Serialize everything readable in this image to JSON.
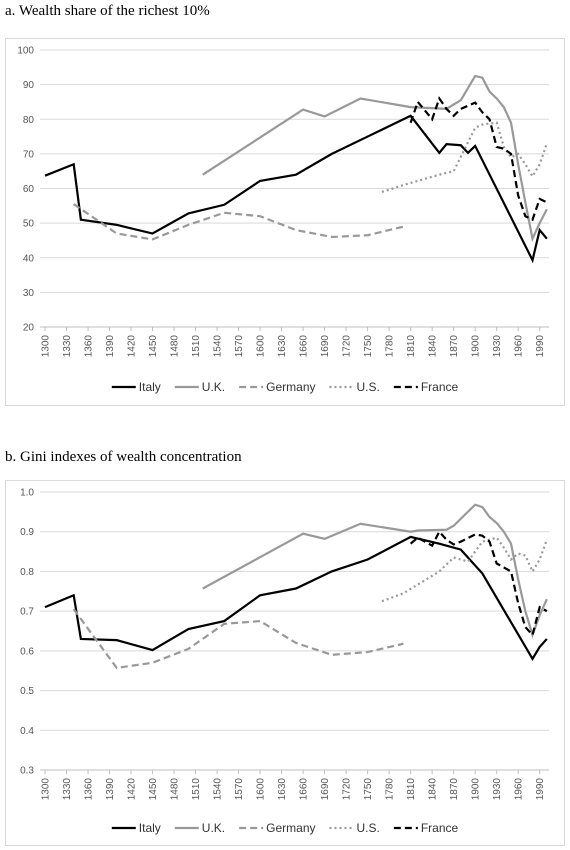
{
  "chart_data": [
    {
      "type": "line",
      "title": "a. Wealth share of the richest 10%",
      "legend": "bottom",
      "grid": true,
      "xlim": [
        1293,
        2003
      ],
      "xticks": [
        1300,
        1330,
        1360,
        1390,
        1420,
        1450,
        1480,
        1510,
        1540,
        1570,
        1600,
        1630,
        1660,
        1690,
        1720,
        1750,
        1780,
        1810,
        1840,
        1870,
        1900,
        1930,
        1960,
        1990
      ],
      "ylim": [
        20,
        100
      ],
      "yticks": [
        20,
        30,
        40,
        50,
        60,
        70,
        80,
        90,
        100
      ],
      "series": [
        {
          "name": "Italy",
          "color": "#000000",
          "dash": "solid",
          "x": [
            1300,
            1340,
            1350,
            1400,
            1450,
            1500,
            1550,
            1600,
            1650,
            1700,
            1750,
            1810,
            1850,
            1860,
            1880,
            1890,
            1900,
            1980,
            1990,
            2000
          ],
          "values": [
            63.7,
            67,
            51,
            49.5,
            47,
            52.8,
            55.3,
            62.2,
            64,
            70,
            75,
            81,
            70.3,
            72.8,
            72.5,
            70.3,
            72.3,
            39.3,
            48,
            45.5
          ]
        },
        {
          "name": "U.K.",
          "color": "#999999",
          "dash": "solid",
          "x": [
            1520,
            1660,
            1690,
            1740,
            1810,
            1860,
            1880,
            1900,
            1910,
            1920,
            1930,
            1940,
            1950,
            1960,
            1970,
            1980,
            1990,
            2000
          ],
          "values": [
            64,
            82.8,
            80.8,
            86,
            83.5,
            83,
            85.5,
            92.5,
            92,
            88,
            86,
            83.5,
            79,
            67,
            56,
            45.5,
            50,
            54
          ]
        },
        {
          "name": "Germany",
          "color": "#999999",
          "dash": "dashed",
          "x": [
            1340,
            1400,
            1450,
            1500,
            1550,
            1600,
            1650,
            1700,
            1750,
            1800
          ],
          "values": [
            55.5,
            47,
            45.3,
            49.5,
            53,
            52,
            48,
            46,
            46.5,
            49
          ]
        },
        {
          "name": "U.S.",
          "color": "#999999",
          "dash": "dotted",
          "x": [
            1770,
            1800,
            1850,
            1870,
            1900,
            1910,
            1930,
            1940,
            1950,
            1960,
            1970,
            1980,
            1990,
            2000
          ],
          "values": [
            59,
            61,
            64,
            65,
            77.5,
            78.5,
            79,
            72,
            69,
            70,
            67,
            63.5,
            67,
            73
          ]
        },
        {
          "name": "France",
          "color": "#000000",
          "dash": "dashed",
          "x": [
            1810,
            1820,
            1840,
            1850,
            1860,
            1870,
            1880,
            1900,
            1910,
            1920,
            1930,
            1940,
            1950,
            1960,
            1970,
            1980,
            1990,
            2000
          ],
          "values": [
            79,
            85,
            80,
            86,
            83,
            81,
            83,
            84.8,
            82,
            80,
            72,
            71.5,
            70,
            58,
            52,
            51,
            57,
            56
          ]
        }
      ]
    },
    {
      "type": "line",
      "title": "b. Gini indexes of wealth concentration",
      "legend": "bottom",
      "grid": true,
      "xlim": [
        1293,
        2003
      ],
      "xticks": [
        1300,
        1330,
        1360,
        1390,
        1420,
        1450,
        1480,
        1510,
        1540,
        1570,
        1600,
        1630,
        1660,
        1690,
        1720,
        1750,
        1780,
        1810,
        1840,
        1870,
        1900,
        1930,
        1960,
        1990
      ],
      "ylim": [
        0.3,
        1
      ],
      "yticks": [
        0.3,
        0.4,
        0.5,
        0.6,
        0.7,
        0.8,
        0.9,
        {
          "value": 1,
          "label": "1.0"
        }
      ],
      "series": [
        {
          "name": "Italy",
          "color": "#000000",
          "dash": "solid",
          "x": [
            1300,
            1340,
            1350,
            1400,
            1450,
            1500,
            1550,
            1600,
            1650,
            1700,
            1750,
            1810,
            1850,
            1880,
            1900,
            1910,
            1980,
            1990,
            2000
          ],
          "values": [
            0.71,
            0.74,
            0.63,
            0.627,
            0.602,
            0.655,
            0.675,
            0.74,
            0.757,
            0.8,
            0.83,
            0.887,
            0.87,
            0.855,
            0.815,
            0.795,
            0.58,
            0.61,
            0.63
          ]
        },
        {
          "name": "U.K.",
          "color": "#999999",
          "dash": "solid",
          "x": [
            1520,
            1660,
            1690,
            1740,
            1810,
            1820,
            1860,
            1870,
            1900,
            1910,
            1920,
            1930,
            1940,
            1950,
            1960,
            1970,
            1980,
            1990,
            2000
          ],
          "values": [
            0.757,
            0.895,
            0.882,
            0.92,
            0.9,
            0.903,
            0.905,
            0.915,
            0.968,
            0.962,
            0.937,
            0.922,
            0.9,
            0.87,
            0.78,
            0.7,
            0.64,
            0.69,
            0.73
          ]
        },
        {
          "name": "Germany",
          "color": "#999999",
          "dash": "dashed",
          "x": [
            1340,
            1400,
            1450,
            1500,
            1550,
            1600,
            1650,
            1700,
            1750,
            1800
          ],
          "values": [
            0.705,
            0.557,
            0.57,
            0.605,
            0.668,
            0.675,
            0.62,
            0.59,
            0.597,
            0.618
          ]
        },
        {
          "name": "U.S.",
          "color": "#999999",
          "dash": "dotted",
          "x": [
            1770,
            1800,
            1850,
            1870,
            1890,
            1900,
            1910,
            1930,
            1940,
            1950,
            1960,
            1970,
            1980,
            1990,
            2000
          ],
          "values": [
            0.725,
            0.745,
            0.8,
            0.835,
            0.825,
            0.85,
            0.875,
            0.885,
            0.86,
            0.83,
            0.845,
            0.84,
            0.8,
            0.83,
            0.88
          ]
        },
        {
          "name": "France",
          "color": "#000000",
          "dash": "dashed",
          "x": [
            1810,
            1820,
            1840,
            1850,
            1860,
            1870,
            1880,
            1900,
            1910,
            1920,
            1930,
            1940,
            1950,
            1960,
            1970,
            1980,
            1990,
            2000
          ],
          "values": [
            0.87,
            0.885,
            0.865,
            0.9,
            0.88,
            0.868,
            0.875,
            0.893,
            0.89,
            0.875,
            0.82,
            0.81,
            0.8,
            0.72,
            0.66,
            0.64,
            0.71,
            0.7
          ]
        }
      ]
    }
  ]
}
